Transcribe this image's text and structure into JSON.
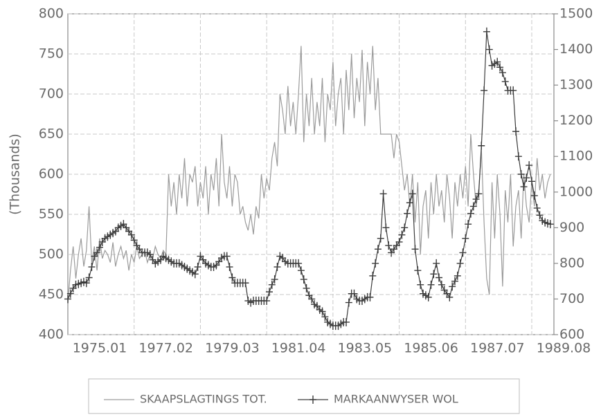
{
  "chart_data": {
    "type": "line",
    "ylabel": "(Thousands)",
    "categories": [
      "1975.01",
      null,
      null,
      null,
      null,
      null,
      null,
      null,
      null,
      null,
      null,
      null,
      null,
      null,
      null,
      null,
      null,
      null,
      null,
      null,
      null,
      null,
      null,
      null,
      null,
      "1977.02",
      null,
      null,
      null,
      null,
      null,
      null,
      null,
      null,
      null,
      null,
      null,
      null,
      null,
      null,
      null,
      null,
      null,
      null,
      null,
      null,
      null,
      null,
      null,
      null,
      "1979.03",
      null,
      null,
      null,
      null,
      null,
      null,
      null,
      null,
      null,
      null,
      null,
      null,
      null,
      null,
      null,
      null,
      null,
      null,
      null,
      null,
      null,
      null,
      null,
      null,
      "1981.04",
      null,
      null,
      null,
      null,
      null,
      null,
      null,
      null,
      null,
      null,
      null,
      null,
      null,
      null,
      null,
      null,
      null,
      null,
      null,
      null,
      null,
      null,
      null,
      null,
      "1983.05",
      null,
      null,
      null,
      null,
      null,
      null,
      null,
      null,
      null,
      null,
      null,
      null,
      null,
      null,
      null,
      null,
      null,
      null,
      null,
      null,
      null,
      null,
      null,
      null,
      "1985.06",
      null,
      null,
      null,
      null,
      null,
      null,
      null,
      null,
      null,
      null,
      null,
      null,
      null,
      null,
      null,
      null,
      null,
      null,
      null,
      null,
      null,
      null,
      null,
      null,
      "1987.07",
      null,
      null,
      null,
      null,
      null,
      null,
      null,
      null,
      null,
      null,
      null,
      null,
      null,
      null,
      null,
      null,
      null,
      null,
      null,
      null,
      null,
      null,
      null,
      null,
      "1989.08",
      null,
      null,
      null,
      null,
      null,
      null,
      null
    ],
    "series": [
      {
        "name": "SKAAPSLAGTINGS TOT.",
        "color": "#9a9a9a",
        "marker": "none",
        "values": [
          440,
          480,
          510,
          470,
          500,
          520,
          485,
          505,
          560,
          490,
          510,
          480,
          520,
          495,
          505,
          500,
          490,
          515,
          485,
          500,
          510,
          495,
          505,
          480,
          500,
          490,
          510,
          495,
          500,
          505,
          490,
          500,
          495,
          510,
          500,
          495,
          505,
          500,
          600,
          560,
          590,
          550,
          600,
          570,
          620,
          560,
          600,
          590,
          610,
          560,
          590,
          570,
          610,
          550,
          600,
          580,
          620,
          560,
          650,
          590,
          570,
          610,
          560,
          600,
          590,
          550,
          560,
          540,
          530,
          550,
          525,
          560,
          545,
          600,
          570,
          595,
          580,
          620,
          640,
          610,
          700,
          680,
          650,
          710,
          660,
          690,
          650,
          700,
          760,
          640,
          700,
          660,
          720,
          650,
          690,
          660,
          720,
          640,
          700,
          680,
          740,
          660,
          700,
          720,
          650,
          730,
          680,
          750,
          670,
          720,
          690,
          755,
          660,
          740,
          700,
          760,
          680,
          720,
          650,
          650,
          650,
          650,
          650,
          620,
          650,
          640,
          610,
          580,
          600,
          560,
          600,
          540,
          590,
          500,
          560,
          580,
          520,
          590,
          550,
          600,
          560,
          580,
          540,
          600,
          570,
          520,
          590,
          560,
          600,
          570,
          610,
          560,
          650,
          600,
          560,
          580,
          630,
          540,
          470,
          450,
          590,
          520,
          600,
          550,
          460,
          580,
          540,
          600,
          510,
          560,
          580,
          520,
          600,
          560,
          540,
          590,
          560,
          620,
          580,
          600,
          570,
          590,
          600
        ]
      },
      {
        "name": "MARKAANWYSER WOL",
        "color": "#3a3a3a",
        "marker": "plus",
        "axis": "y2",
        "values": [
          700,
          715,
          730,
          740,
          742,
          745,
          748,
          745,
          760,
          790,
          820,
          830,
          845,
          860,
          870,
          875,
          880,
          885,
          890,
          900,
          905,
          910,
          900,
          890,
          880,
          865,
          850,
          840,
          830,
          830,
          830,
          825,
          810,
          800,
          805,
          810,
          820,
          815,
          810,
          805,
          800,
          800,
          800,
          795,
          790,
          785,
          780,
          775,
          770,
          790,
          820,
          810,
          800,
          795,
          790,
          790,
          795,
          805,
          815,
          820,
          820,
          790,
          760,
          745,
          745,
          745,
          745,
          745,
          695,
          690,
          695,
          695,
          695,
          695,
          695,
          695,
          720,
          740,
          755,
          790,
          820,
          815,
          805,
          800,
          800,
          800,
          800,
          800,
          780,
          755,
          730,
          710,
          700,
          685,
          680,
          670,
          665,
          650,
          635,
          630,
          625,
          625,
          625,
          630,
          635,
          635,
          690,
          715,
          715,
          700,
          695,
          695,
          700,
          705,
          705,
          765,
          800,
          840,
          870,
          995,
          900,
          850,
          830,
          840,
          850,
          860,
          880,
          900,
          940,
          970,
          995,
          840,
          780,
          740,
          715,
          710,
          705,
          740,
          770,
          800,
          760,
          740,
          725,
          715,
          705,
          735,
          750,
          765,
          800,
          830,
          870,
          910,
          940,
          960,
          980,
          995,
          1130,
          1285,
          1450,
          1400,
          1355,
          1360,
          1365,
          1350,
          1335,
          1310,
          1285,
          1285,
          1285,
          1170,
          1100,
          1050,
          1015,
          1040,
          1075,
          1030,
          990,
          955,
          935,
          920,
          915,
          912,
          910
        ]
      }
    ],
    "ylim": [
      400,
      800
    ],
    "yticks": [
      400,
      450,
      500,
      550,
      600,
      650,
      700,
      750,
      800
    ],
    "y2lim": [
      600,
      1500
    ],
    "y2ticks": [
      600,
      700,
      800,
      900,
      1000,
      1100,
      1200,
      1300,
      1400,
      1500
    ],
    "grid": true,
    "legend": "bottom"
  }
}
